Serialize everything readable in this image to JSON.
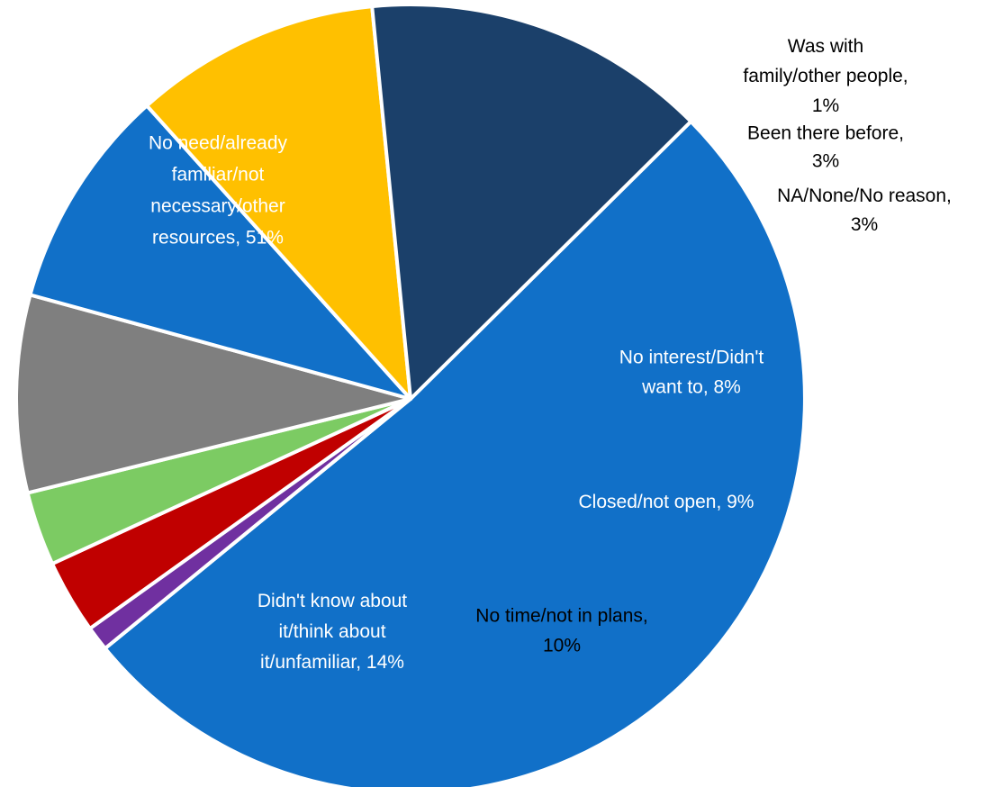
{
  "chart_data": {
    "type": "pie",
    "slices": [
      {
        "label": "No need/already familiar/not necessary/other resources",
        "value": 51,
        "value_label": "51%",
        "color": "#1170C8"
      },
      {
        "label": "Was with family/other people",
        "value": 1,
        "value_label": "1%",
        "color": "#7030A0"
      },
      {
        "label": "Been there before",
        "value": 3,
        "value_label": "3%",
        "color": "#C00000"
      },
      {
        "label": "NA/None/No reason",
        "value": 3,
        "value_label": "3%",
        "color": "#7CCB63"
      },
      {
        "label": "No interest/Didn't want to",
        "value": 8,
        "value_label": "8%",
        "color": "#7F7F7F"
      },
      {
        "label": "Closed/not open",
        "value": 9,
        "value_label": "9%",
        "color": "#1170C8"
      },
      {
        "label": "No time/not in plans",
        "value": 10,
        "value_label": "10%",
        "color": "#FFC000"
      },
      {
        "label": "Didn't know about it/think about it/unfamiliar",
        "value": 14,
        "value_label": "14%",
        "color": "#1B406A"
      }
    ],
    "data_labels": [
      {
        "lines": [
          "No need/already",
          "familiar/not",
          "necessary/other",
          "resources, 51%"
        ]
      },
      {
        "lines": [
          "Was with",
          "family/other people,",
          "1%"
        ]
      },
      {
        "lines": [
          "Been there before,",
          "3%"
        ]
      },
      {
        "lines": [
          "NA/None/No reason,",
          "3%"
        ]
      },
      {
        "lines": [
          "No interest/Didn't",
          "want to, 8%"
        ]
      },
      {
        "lines": [
          "Closed/not open, 9%"
        ]
      },
      {
        "lines": [
          "No time/not in plans,",
          "10%"
        ]
      },
      {
        "lines": [
          "Didn't know about",
          "it/think about",
          "it/unfamiliar, 14%"
        ]
      }
    ]
  }
}
